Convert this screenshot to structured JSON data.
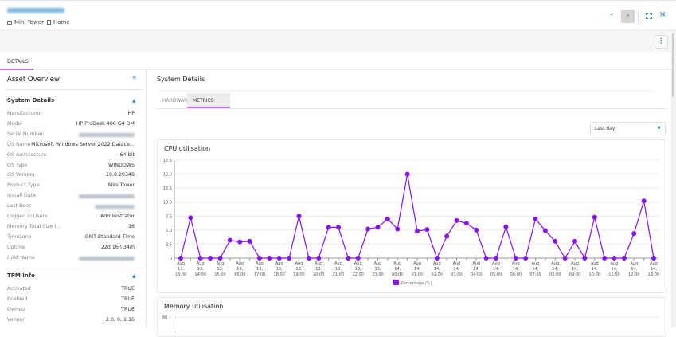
{
  "header": {
    "breadcrumb": [
      {
        "icon": "folder-icon",
        "label": "Mini Tower"
      },
      {
        "icon": "building-icon",
        "label": "Home"
      }
    ],
    "prev_icon": "chevron-left-icon",
    "next_icon": "chevron-right-icon",
    "expand_icon": "expand-icon",
    "close_icon": "close-icon",
    "more_icon": "kebab-menu-icon"
  },
  "page_tabs": [
    {
      "label": "DETAILS",
      "active": true
    }
  ],
  "left_panel": {
    "title": "Asset Overview",
    "collapse_icon": "double-chevron-left-icon",
    "system_details": {
      "title": "System Details",
      "rows": [
        {
          "label": "Manufacturer",
          "value": "HP"
        },
        {
          "label": "Model",
          "value": "HP ProDesk 400 G4 DM"
        },
        {
          "label": "Serial Number",
          "value": null
        },
        {
          "label": "OS Name",
          "value": "Microsoft Windows Server 2022 Datace..."
        },
        {
          "label": "OS Architecture",
          "value": "64-bit"
        },
        {
          "label": "OS Type",
          "value": "WINDOWS"
        },
        {
          "label": "OS Version",
          "value": "10.0.20348"
        },
        {
          "label": "Product Type",
          "value": "Mini Tower"
        },
        {
          "label": "Install Date",
          "value": null
        },
        {
          "label": "Last Boot",
          "value": null
        },
        {
          "label": "Logged in Users",
          "value": "Administrator"
        },
        {
          "label": "Memory Total Size (...",
          "value": "16"
        },
        {
          "label": "Timezone",
          "value": "GMT Standard Time"
        },
        {
          "label": "Uptime",
          "value": "22d 16h 34m"
        },
        {
          "label": "Host Name",
          "value": null
        }
      ]
    },
    "tpm_info": {
      "title": "TPM Info",
      "rows": [
        {
          "label": "Activated",
          "value": "TRUE"
        },
        {
          "label": "Enabled",
          "value": "TRUE"
        },
        {
          "label": "Owned",
          "value": "TRUE"
        },
        {
          "label": "Version",
          "value": "2.0, 0, 1.16"
        }
      ]
    }
  },
  "main": {
    "title": "System Details",
    "tabs": [
      {
        "label": "HARDWARE",
        "active": false
      },
      {
        "label": "METRICS",
        "active": true
      }
    ],
    "range_select": "Last day"
  },
  "colors": {
    "accent": "#a020f0",
    "cpu_series": "#8a12f0",
    "memory_series": "#3fd6c6",
    "link": "#2a8ad4"
  },
  "chart_data": [
    {
      "type": "line",
      "title": "CPU utilisation",
      "ylim": [
        0,
        17.5
      ],
      "yticks": [
        "0",
        "2.5",
        "5.0",
        "7.5",
        "10.0",
        "12.5",
        "15.0",
        "17.5"
      ],
      "grid": true,
      "legend": "bottom",
      "x": [
        "Aug 13, 13:00",
        "Aug 13, 13:30",
        "Aug 13, 14:00",
        "Aug 13, 14:30",
        "Aug 13, 15:00",
        "Aug 13, 15:30",
        "Aug 13, 16:00",
        "Aug 13, 16:30",
        "Aug 13, 17:00",
        "Aug 13, 17:30",
        "Aug 13, 18:00",
        "Aug 13, 18:30",
        "Aug 13, 19:00",
        "Aug 13, 19:30",
        "Aug 13, 20:00",
        "Aug 13, 20:30",
        "Aug 13, 21:00",
        "Aug 13, 21:30",
        "Aug 13, 22:00",
        "Aug 13, 22:30",
        "Aug 13, 23:00",
        "Aug 13, 23:30",
        "Aug 14, 00:00",
        "Aug 14, 00:30",
        "Aug 14, 01:00",
        "Aug 14, 01:30",
        "Aug 14, 02:00",
        "Aug 14, 02:30",
        "Aug 14, 03:00",
        "Aug 14, 03:30",
        "Aug 14, 04:00",
        "Aug 14, 04:30",
        "Aug 14, 05:00",
        "Aug 14, 05:30",
        "Aug 14, 06:00",
        "Aug 14, 06:30",
        "Aug 14, 07:00",
        "Aug 14, 07:30",
        "Aug 14, 08:00",
        "Aug 14, 08:30",
        "Aug 14, 09:00",
        "Aug 14, 09:30",
        "Aug 14, 10:00",
        "Aug 14, 10:30",
        "Aug 14, 11:00",
        "Aug 14, 11:30",
        "Aug 14, 12:00",
        "Aug 14, 12:30",
        "Aug 14, 13:00"
      ],
      "xtick_labels": [
        [
          "Aug",
          "13,",
          "13:00"
        ],
        [
          "Aug",
          "13,",
          "14:00"
        ],
        [
          "Aug",
          "13,",
          "15:00"
        ],
        [
          "Aug",
          "13,",
          "16:00"
        ],
        [
          "Aug",
          "13,",
          "17:00"
        ],
        [
          "Aug",
          "13,",
          "18:00"
        ],
        [
          "Aug",
          "13,",
          "19:00"
        ],
        [
          "Aug",
          "13,",
          "20:00"
        ],
        [
          "Aug",
          "13,",
          "21:00"
        ],
        [
          "Aug",
          "13,",
          "22:00"
        ],
        [
          "Aug",
          "13,",
          "23:00"
        ],
        [
          "Aug",
          "14,",
          "00:00"
        ],
        [
          "Aug",
          "14,",
          "01:00"
        ],
        [
          "Aug",
          "14,",
          "02:00"
        ],
        [
          "Aug",
          "14,",
          "03:00"
        ],
        [
          "Aug",
          "14,",
          "04:00"
        ],
        [
          "Aug",
          "14,",
          "05:00"
        ],
        [
          "Aug",
          "14,",
          "06:00"
        ],
        [
          "Aug",
          "14,",
          "07:00"
        ],
        [
          "Aug",
          "14,",
          "08:00"
        ],
        [
          "Aug",
          "14,",
          "09:00"
        ],
        [
          "Aug",
          "14,",
          "10:00"
        ],
        [
          "Aug",
          "14,",
          "11:00"
        ],
        [
          "Aug",
          "14,",
          "12:00"
        ],
        [
          "Aug",
          "14,",
          "13:00"
        ]
      ],
      "series": [
        {
          "name": "Percentage (%)",
          "values": [
            0,
            7.2,
            0,
            0,
            0,
            3.2,
            2.9,
            3.0,
            0,
            0,
            0,
            0,
            7.5,
            0,
            0,
            5.5,
            5.5,
            0,
            0,
            5.2,
            5.5,
            7.0,
            5.2,
            15.0,
            4.8,
            5.1,
            0,
            3.9,
            6.7,
            6.2,
            5.0,
            0,
            0,
            5.6,
            0,
            0,
            7.0,
            4.9,
            3.0,
            0,
            3.0,
            0,
            7.3,
            0,
            0,
            0,
            4.4,
            10.2,
            0
          ]
        }
      ]
    },
    {
      "type": "line",
      "title": "Memory utilisation",
      "yticks": [
        "60"
      ]
    }
  ]
}
